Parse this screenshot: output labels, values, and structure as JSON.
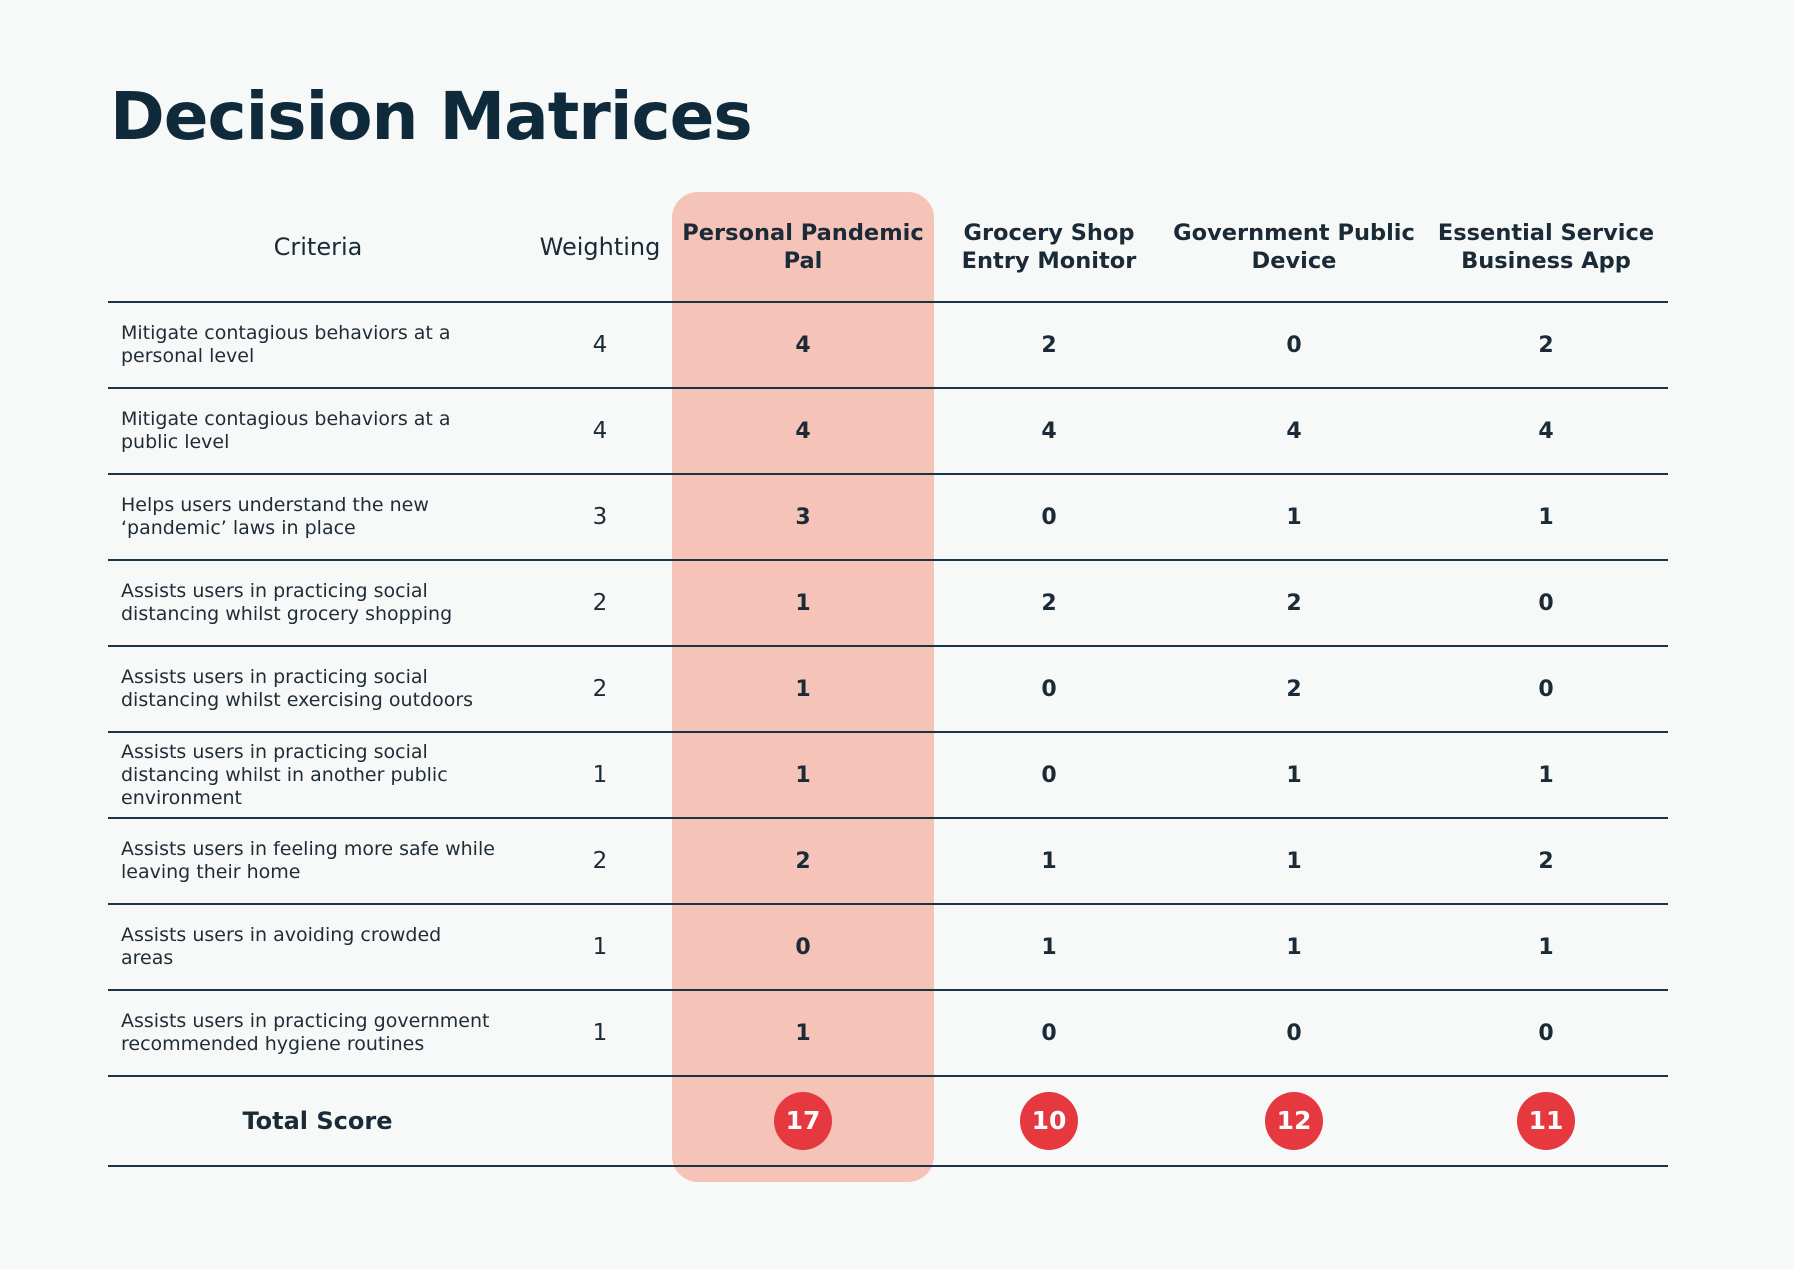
{
  "title": "Decision Matrices",
  "colors": {
    "highlight": "#f6c3b9",
    "badge": "#e5393f",
    "title": "#0e2a3b"
  },
  "headers": {
    "criteria": "Criteria",
    "weighting": "Weighting",
    "options": [
      "Personal Pandemic Pal",
      "Grocery Shop Entry Monitor",
      "Government Public Device",
      "Essential Service Business App"
    ]
  },
  "rows": [
    {
      "criteria": "Mitigate contagious behaviors at a personal level",
      "weighting": "4",
      "scores": [
        "4",
        "2",
        "0",
        "2"
      ]
    },
    {
      "criteria": "Mitigate contagious behaviors at a public level",
      "weighting": "4",
      "scores": [
        "4",
        "4",
        "4",
        "4"
      ]
    },
    {
      "criteria": "Helps users understand the new ‘pandemic’ laws in place",
      "weighting": "3",
      "scores": [
        "3",
        "0",
        "1",
        "1"
      ]
    },
    {
      "criteria": "Assists users in practicing social distancing whilst grocery shopping",
      "weighting": "2",
      "scores": [
        "1",
        "2",
        "2",
        "0"
      ]
    },
    {
      "criteria": "Assists users in practicing social distancing whilst exercising outdoors",
      "weighting": "2",
      "scores": [
        "1",
        "0",
        "2",
        "0"
      ]
    },
    {
      "criteria": "Assists users in practicing social distancing whilst in another public environment",
      "weighting": "1",
      "scores": [
        "1",
        "0",
        "1",
        "1"
      ]
    },
    {
      "criteria": "Assists users in feeling more safe while leaving their home",
      "weighting": "2",
      "scores": [
        "2",
        "1",
        "1",
        "2"
      ]
    },
    {
      "criteria": "Assists users in avoiding crowded areas",
      "weighting": "1",
      "scores": [
        "0",
        "1",
        "1",
        "1"
      ]
    },
    {
      "criteria": "Assists users in practicing government recommended hygiene routines",
      "weighting": "1",
      "scores": [
        "1",
        "0",
        "0",
        "0"
      ]
    }
  ],
  "total": {
    "label": "Total Score",
    "scores": [
      "17",
      "10",
      "12",
      "11"
    ]
  }
}
